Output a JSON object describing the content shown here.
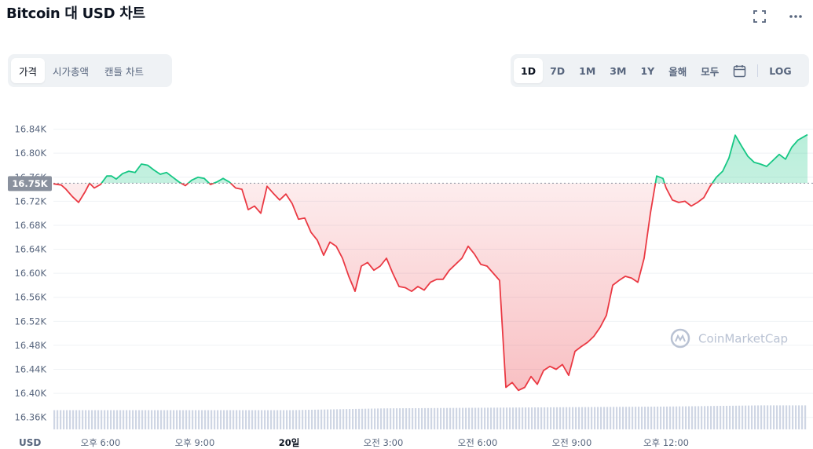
{
  "header": {
    "title": "Bitcoin 대 USD 차트",
    "icons": [
      "fullscreen-icon",
      "more-icon"
    ]
  },
  "metric_tabs": [
    {
      "label": "가격",
      "active": true
    },
    {
      "label": "시가총액",
      "active": false
    },
    {
      "label": "캔들 차트",
      "active": false
    }
  ],
  "range_tabs": [
    {
      "label": "1D",
      "active": true
    },
    {
      "label": "7D",
      "active": false
    },
    {
      "label": "1M",
      "active": false
    },
    {
      "label": "3M",
      "active": false
    },
    {
      "label": "1Y",
      "active": false
    },
    {
      "label": "올해",
      "active": false
    },
    {
      "label": "모두",
      "active": false
    }
  ],
  "calendar_icon": "calendar-icon",
  "log_label": "LOG",
  "chart_data": {
    "type": "area",
    "title": "",
    "xlabel": "",
    "ylabel": "",
    "ylim": [
      16340,
      16880
    ],
    "y_ticks": [
      "16.84K",
      "16.80K",
      "16.76K",
      "16.72K",
      "16.68K",
      "16.64K",
      "16.60K",
      "16.56K",
      "16.52K",
      "16.48K",
      "16.44K",
      "16.40K",
      "16.36K"
    ],
    "y_tick_values": [
      16840,
      16800,
      16760,
      16720,
      16680,
      16640,
      16600,
      16560,
      16520,
      16480,
      16440,
      16400,
      16360
    ],
    "x_ticks": [
      {
        "label": "오후 6:00",
        "hour": 3,
        "bold": false
      },
      {
        "label": "오후 9:00",
        "hour": 6,
        "bold": false
      },
      {
        "label": "20일",
        "hour": 9,
        "bold": true
      },
      {
        "label": "오전 3:00",
        "hour": 12,
        "bold": false
      },
      {
        "label": "오전 6:00",
        "hour": 15,
        "bold": false
      },
      {
        "label": "오전 9:00",
        "hour": 18,
        "bold": false
      },
      {
        "label": "오후 12:00",
        "hour": 21,
        "bold": false
      }
    ],
    "x_range": [
      1.5,
      25.5
    ],
    "currency_label": "USD",
    "reference_label": "16.75K",
    "reference_value": 16750,
    "colors": {
      "up": "#16c784",
      "down": "#ea3943",
      "reference": "#8a919e",
      "volume": "#cfd6e4"
    },
    "watermark": "CoinMarketCap",
    "series": [
      {
        "x": [
          1.5,
          1.75,
          1.9,
          2.1,
          2.3,
          2.5,
          2.65,
          2.8,
          3.0,
          3.2,
          3.35,
          3.5,
          3.7,
          3.9,
          4.1,
          4.3,
          4.5,
          4.7,
          4.9,
          5.1,
          5.3,
          5.5,
          5.7,
          5.9,
          6.1,
          6.3,
          6.5,
          6.7,
          6.9,
          7.1,
          7.3,
          7.5,
          7.7,
          7.9,
          8.1,
          8.3,
          8.5,
          8.7,
          8.9,
          9.1,
          9.3,
          9.5,
          9.7,
          9.9,
          10.1,
          10.3,
          10.5,
          10.7,
          10.9,
          11.1,
          11.3,
          11.5,
          11.7,
          11.9,
          12.1,
          12.3,
          12.5,
          12.7,
          12.9,
          13.1,
          13.3,
          13.5,
          13.7,
          13.9,
          14.1,
          14.3,
          14.5,
          14.7,
          14.9,
          15.1,
          15.3,
          15.5,
          15.7,
          15.9,
          16.1,
          16.3,
          16.5,
          16.7,
          16.9,
          17.1,
          17.3,
          17.5,
          17.7,
          17.9,
          18.1,
          18.3,
          18.5,
          18.7,
          18.9,
          19.1,
          19.3,
          19.5,
          19.7,
          19.9,
          20.1,
          20.3,
          20.5,
          20.7,
          20.9,
          21.0,
          21.2,
          21.4,
          21.6,
          21.8,
          22.0,
          22.2,
          22.4,
          22.6,
          22.8,
          23.0,
          23.2,
          23.4,
          23.6,
          23.8,
          24.0,
          24.2,
          24.4,
          24.6,
          24.8,
          25.0,
          25.2,
          25.4,
          25.5
        ],
        "y": [
          16749,
          16747,
          16740,
          16728,
          16718,
          16735,
          16750,
          16742,
          16748,
          16762,
          16762,
          16757,
          16766,
          16770,
          16768,
          16782,
          16780,
          16772,
          16765,
          16768,
          16760,
          16752,
          16746,
          16755,
          16760,
          16758,
          16748,
          16752,
          16758,
          16752,
          16742,
          16740,
          16706,
          16712,
          16700,
          16745,
          16733,
          16722,
          16732,
          16716,
          16690,
          16692,
          16668,
          16655,
          16630,
          16652,
          16645,
          16625,
          16595,
          16570,
          16612,
          16618,
          16605,
          16612,
          16625,
          16600,
          16578,
          16576,
          16570,
          16578,
          16572,
          16585,
          16590,
          16590,
          16605,
          16615,
          16625,
          16645,
          16632,
          16615,
          16612,
          16600,
          16588,
          16410,
          16418,
          16405,
          16410,
          16428,
          16415,
          16438,
          16445,
          16440,
          16448,
          16430,
          16470,
          16478,
          16485,
          16495,
          16510,
          16530,
          16580,
          16588,
          16595,
          16592,
          16585,
          16625,
          16700,
          16762,
          16758,
          16742,
          16722,
          16718,
          16720,
          16712,
          16718,
          16726,
          16745,
          16760,
          16770,
          16792,
          16830,
          16812,
          16795,
          16785,
          16782,
          16778,
          16788,
          16798,
          16790,
          16810,
          16822,
          16828,
          16831
        ]
      },
      {
        "name": "volume",
        "x": [
          1.5,
          3,
          6,
          9,
          12,
          15,
          18,
          21,
          24,
          25.5
        ],
        "y": [
          16372,
          16372,
          16372,
          16372,
          16375,
          16376,
          16377,
          16378,
          16380,
          16380
        ]
      }
    ]
  }
}
